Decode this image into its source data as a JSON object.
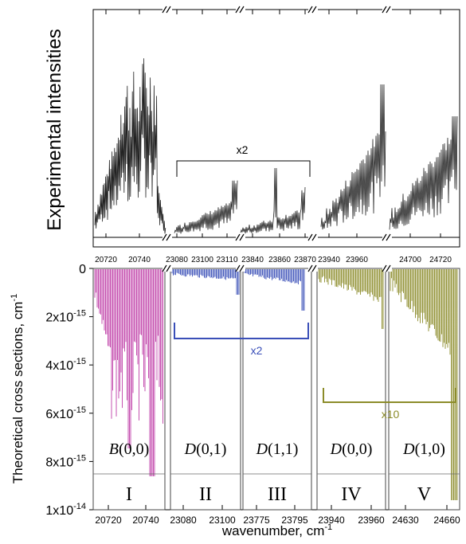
{
  "chart_data": {
    "type": "line",
    "top_panel": {
      "ylabel": "Experimental intensities",
      "x_ticks": [
        "20720",
        "20740",
        "23080",
        "23100",
        "23110",
        "23840",
        "23860",
        "23870",
        "23940",
        "23960",
        "24700",
        "24720"
      ],
      "scale_annotation": "x2"
    },
    "bottom_panel": {
      "ylabel": "Theoretical cross sections, cm",
      "ylabel_exponent": "-1",
      "ylim": [
        0,
        1e-14
      ],
      "y_ticks": [
        {
          "mant": "0",
          "exp": ""
        },
        {
          "mant": "2x10",
          "exp": "-15"
        },
        {
          "mant": "4x10",
          "exp": "-15"
        },
        {
          "mant": "6x10",
          "exp": "-15"
        },
        {
          "mant": "8x10",
          "exp": "-15"
        },
        {
          "mant": "1x10",
          "exp": "-14"
        }
      ],
      "xlabel": "wavenumber, cm",
      "xlabel_exponent": "-1",
      "x_ticks": [
        "20720",
        "20740",
        "23080",
        "23100",
        "23775",
        "23795",
        "23940",
        "23960",
        "24630",
        "24660"
      ],
      "bands": [
        {
          "numeral": "I",
          "letter": "B",
          "label": "(0,0)",
          "color": "#c040a8"
        },
        {
          "numeral": "II",
          "letter": "D",
          "label": "(0,1)",
          "color": "#3a4fb8"
        },
        {
          "numeral": "III",
          "letter": "D",
          "label": "(1,1)",
          "color": "#3a4fb8"
        },
        {
          "numeral": "IV",
          "letter": "D",
          "label": "(0,0)",
          "color": "#8c8c2a"
        },
        {
          "numeral": "V",
          "letter": "D",
          "label": "(1,0)",
          "color": "#8c8c2a"
        }
      ],
      "scale_annotations": [
        {
          "text": "x2",
          "color": "#3a4fb8"
        },
        {
          "text": "x10",
          "color": "#8c8c2a"
        }
      ]
    }
  }
}
